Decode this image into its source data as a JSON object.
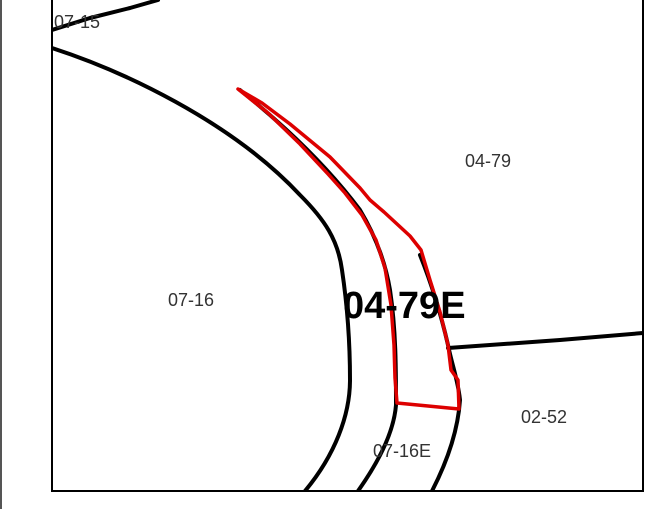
{
  "map": {
    "parcel_labels": {
      "p0715": "07-15",
      "p0479": "04-79",
      "p0716": "07-16",
      "p0479e": "04-79E",
      "p0252": "02-52",
      "p0716e": "07-16E"
    },
    "highlighted_parcel": "04-79E",
    "colors": {
      "boundary": "#000000",
      "highlight": "#dd0000",
      "background": "#ffffff",
      "label": "#333333"
    }
  }
}
